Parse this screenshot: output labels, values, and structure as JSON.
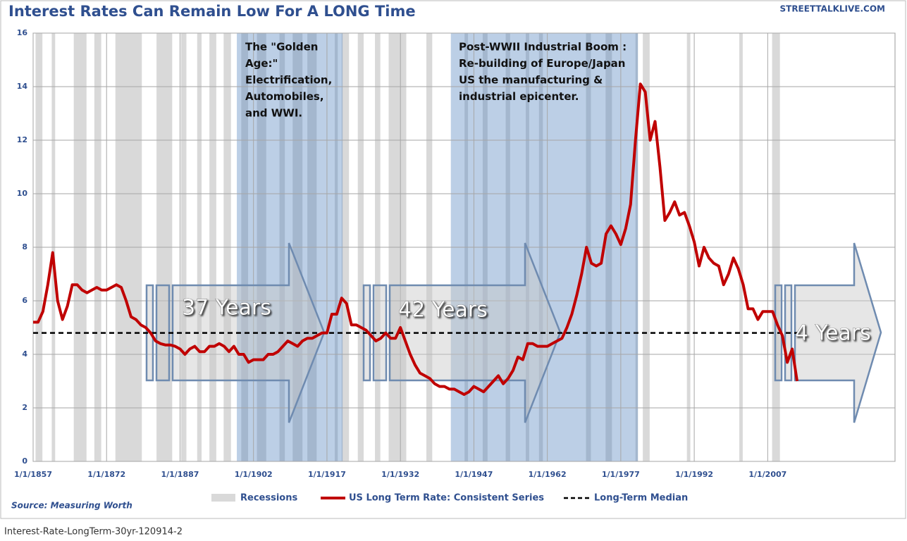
{
  "chart_data": {
    "type": "line",
    "title": "Interest Rates Can Remain Low For A LONG Time",
    "brand": "STREETTALKLIVE.COM",
    "source": "Source: Measuring Worth",
    "caption": "Interest-Rate-LongTerm-30yr-120914-2",
    "x": [
      1857,
      1858,
      1859,
      1860,
      1861,
      1862,
      1863,
      1864,
      1865,
      1866,
      1867,
      1868,
      1869,
      1870,
      1871,
      1872,
      1873,
      1874,
      1875,
      1876,
      1877,
      1878,
      1879,
      1880,
      1881,
      1882,
      1883,
      1884,
      1885,
      1886,
      1887,
      1888,
      1889,
      1890,
      1891,
      1892,
      1893,
      1894,
      1895,
      1896,
      1897,
      1898,
      1899,
      1900,
      1901,
      1902,
      1903,
      1904,
      1905,
      1906,
      1907,
      1908,
      1909,
      1910,
      1911,
      1912,
      1913,
      1914,
      1915,
      1916,
      1917,
      1918,
      1919,
      1920,
      1921,
      1922,
      1923,
      1924,
      1925,
      1926,
      1927,
      1928,
      1929,
      1930,
      1931,
      1932,
      1933,
      1934,
      1935,
      1936,
      1937,
      1938,
      1939,
      1940,
      1941,
      1942,
      1943,
      1944,
      1945,
      1946,
      1947,
      1948,
      1949,
      1950,
      1951,
      1952,
      1953,
      1954,
      1955,
      1956,
      1957,
      1958,
      1959,
      1960,
      1961,
      1962,
      1963,
      1964,
      1965,
      1966,
      1967,
      1968,
      1969,
      1970,
      1971,
      1972,
      1973,
      1974,
      1975,
      1976,
      1977,
      1978,
      1979,
      1980,
      1981,
      1982,
      1983,
      1984,
      1985,
      1986,
      1987,
      1988,
      1989,
      1990,
      1991,
      1992,
      1993,
      1994,
      1995,
      1996,
      1997,
      1998,
      1999,
      2000,
      2001,
      2002,
      2003,
      2004,
      2005,
      2006,
      2007,
      2008,
      2009,
      2010,
      2011,
      2012,
      2013
    ],
    "series": [
      {
        "name": "US Long Term Rate:  Consistent Series",
        "color": "#c00000",
        "values": [
          5.2,
          5.2,
          5.6,
          6.6,
          7.8,
          6.0,
          5.3,
          5.8,
          6.6,
          6.6,
          6.4,
          6.3,
          6.4,
          6.5,
          6.4,
          6.4,
          6.5,
          6.6,
          6.5,
          6.0,
          5.4,
          5.3,
          5.1,
          5.0,
          4.8,
          4.5,
          4.4,
          4.35,
          4.35,
          4.3,
          4.2,
          4.0,
          4.2,
          4.3,
          4.1,
          4.1,
          4.3,
          4.3,
          4.4,
          4.3,
          4.1,
          4.3,
          4.0,
          4.0,
          3.7,
          3.8,
          3.8,
          3.8,
          4.0,
          4.0,
          4.1,
          4.3,
          4.5,
          4.4,
          4.3,
          4.5,
          4.6,
          4.6,
          4.7,
          4.8,
          4.8,
          5.5,
          5.5,
          6.1,
          5.9,
          5.1,
          5.1,
          5.0,
          4.9,
          4.7,
          4.5,
          4.6,
          4.8,
          4.6,
          4.6,
          5.0,
          4.5,
          4.0,
          3.6,
          3.3,
          3.2,
          3.1,
          2.9,
          2.8,
          2.8,
          2.7,
          2.7,
          2.6,
          2.5,
          2.6,
          2.8,
          2.7,
          2.6,
          2.8,
          3.0,
          3.2,
          2.9,
          3.1,
          3.4,
          3.9,
          3.8,
          4.4,
          4.4,
          4.3,
          4.3,
          4.3,
          4.4,
          4.5,
          4.6,
          5.0,
          5.5,
          6.2,
          7.0,
          8.0,
          7.4,
          7.3,
          7.4,
          8.5,
          8.8,
          8.5,
          8.1,
          8.7,
          9.6,
          12.0,
          14.1,
          13.8,
          12.0,
          12.7,
          11.0,
          9.0,
          9.3,
          9.7,
          9.2,
          9.3,
          8.8,
          8.2,
          7.3,
          8.0,
          7.6,
          7.4,
          7.3,
          6.6,
          7.0,
          7.6,
          7.2,
          6.6,
          5.7,
          5.7,
          5.3,
          5.6,
          5.6,
          5.6,
          5.1,
          4.7,
          3.7,
          4.2,
          3.0
        ]
      }
    ],
    "median": 4.8,
    "median_name": "Long-Term Median",
    "median_color": "#000000",
    "recessions_name": "Recessions",
    "recession_color": "#d9d9d9",
    "recessions": [
      [
        1857.5,
        1858.9
      ],
      [
        1860.8,
        1861.5
      ],
      [
        1865.3,
        1867.9
      ],
      [
        1869.5,
        1870.9
      ],
      [
        1873.8,
        1879.2
      ],
      [
        1882.2,
        1885.4
      ],
      [
        1887.2,
        1888.3
      ],
      [
        1890.5,
        1891.4
      ],
      [
        1893.0,
        1894.4
      ],
      [
        1895.9,
        1897.4
      ],
      [
        1899.5,
        1900.9
      ],
      [
        1902.7,
        1904.6
      ],
      [
        1907.3,
        1908.4
      ],
      [
        1910.0,
        1912.0
      ],
      [
        1913.0,
        1914.9
      ],
      [
        1918.6,
        1919.2
      ],
      [
        1920.0,
        1921.5
      ],
      [
        1923.3,
        1924.5
      ],
      [
        1926.8,
        1927.9
      ],
      [
        1929.6,
        1933.2
      ],
      [
        1937.3,
        1938.5
      ],
      [
        1945.1,
        1945.8
      ],
      [
        1948.8,
        1949.8
      ],
      [
        1953.5,
        1954.4
      ],
      [
        1957.6,
        1958.3
      ],
      [
        1960.3,
        1961.1
      ],
      [
        1969.9,
        1970.9
      ],
      [
        1973.9,
        1975.2
      ],
      [
        1980.0,
        1980.5
      ],
      [
        1981.5,
        1982.9
      ],
      [
        1990.5,
        1991.2
      ],
      [
        2001.2,
        2001.9
      ],
      [
        2007.9,
        2009.5
      ]
    ],
    "periods": [
      {
        "range": [
          1898.6,
          1920.2
        ],
        "lines": [
          "The \"Golden",
          "Age:\"",
          "Electrification,",
          "Automobiles,",
          "and WWI."
        ]
      },
      {
        "range": [
          1942.3,
          1980.5
        ],
        "lines": [
          "Post-WWII Industrial Boom :",
          "Re-building of Europe/Japan",
          "US the manufacturing &",
          "industrial epicenter."
        ]
      }
    ],
    "arrows": [
      "37 Years",
      "42 Years",
      "4 Years"
    ],
    "xlim": [
      1857,
      2033
    ],
    "ylim": [
      0,
      16
    ],
    "xticks": [
      {
        "value": 1857,
        "label": "1/1/1857"
      },
      {
        "value": 1872,
        "label": "1/1/1872"
      },
      {
        "value": 1887,
        "label": "1/1/1887"
      },
      {
        "value": 1902,
        "label": "1/1/1902"
      },
      {
        "value": 1917,
        "label": "1/1/1917"
      },
      {
        "value": 1932,
        "label": "1/1/1932"
      },
      {
        "value": 1947,
        "label": "1/1/1947"
      },
      {
        "value": 1962,
        "label": "1/1/1962"
      },
      {
        "value": 1977,
        "label": "1/1/1977"
      },
      {
        "value": 1992,
        "label": "1/1/1992"
      },
      {
        "value": 2007,
        "label": "1/1/2007"
      }
    ],
    "yticks": [
      0,
      2,
      4,
      6,
      8,
      10,
      12,
      14,
      16
    ],
    "grid": true
  }
}
